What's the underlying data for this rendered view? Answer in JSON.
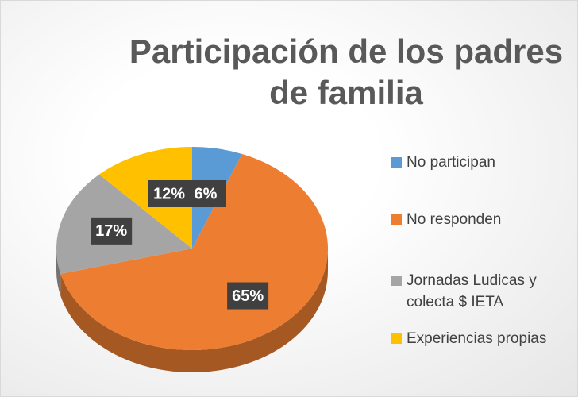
{
  "chart_data": {
    "type": "pie",
    "title": "Participación de los padres de familia",
    "categories": [
      "No participan",
      "No responden",
      "Jornadas Ludicas y colecta $ IETA",
      "Experiencias propias"
    ],
    "values": [
      6,
      65,
      17,
      12
    ],
    "value_labels": [
      "6%",
      "65%",
      "17%",
      "12%"
    ],
    "colors": [
      "#5b9bd5",
      "#ed7d31",
      "#a5a5a5",
      "#ffc000"
    ],
    "legend": "right"
  }
}
